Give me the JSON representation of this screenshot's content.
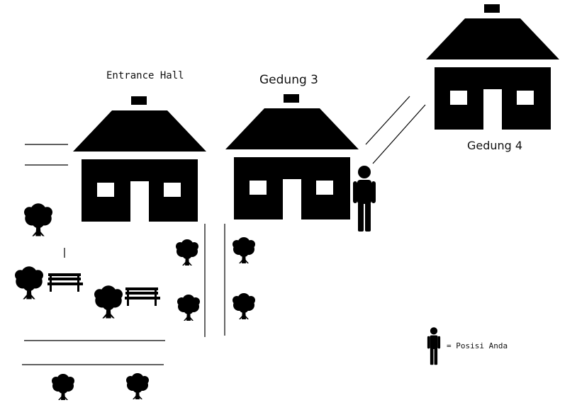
{
  "buildings": [
    {
      "id": "entrance",
      "name": "Entrance Hall"
    },
    {
      "id": "gedung3",
      "name": "Gedung 3"
    },
    {
      "id": "gedung4",
      "name": "Gedung 4"
    }
  ],
  "legend": {
    "you_are_here": "= Posisi Anda"
  },
  "icons": {
    "person": "person-icon",
    "tree": "tree-icon",
    "bench": "bench-icon",
    "house": "house-icon"
  },
  "colors": {
    "ink": "#000000",
    "background": "#ffffff"
  }
}
